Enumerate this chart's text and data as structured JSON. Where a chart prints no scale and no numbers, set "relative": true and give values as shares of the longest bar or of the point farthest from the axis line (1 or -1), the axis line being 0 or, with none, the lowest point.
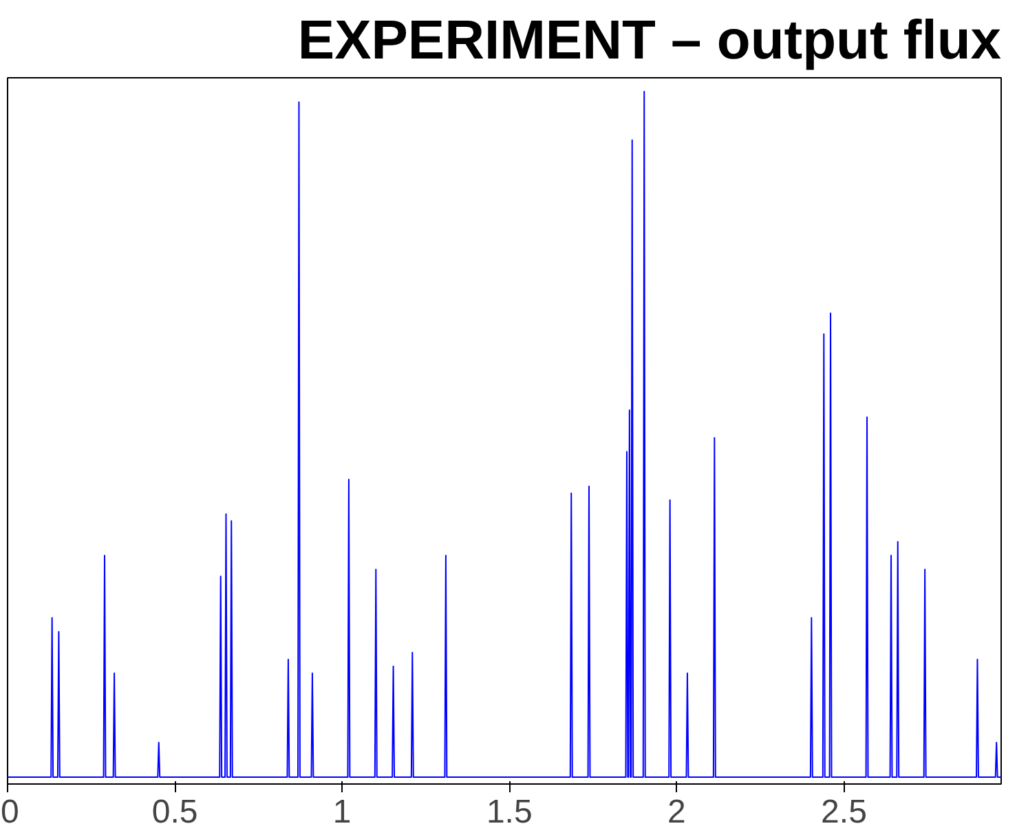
{
  "chart_data": {
    "type": "line",
    "title": "EXPERIMENT – output flux",
    "relative": true,
    "color": "#0000ff",
    "xlim": [
      0,
      2.97
    ],
    "xticks": [
      0,
      0.5,
      1,
      1.5,
      2,
      2.5
    ],
    "grid": false,
    "x": [
      0,
      0.13,
      0.133,
      0.136,
      0.15,
      0.153,
      0.156,
      0.287,
      0.29,
      0.293,
      0.316,
      0.319,
      0.322,
      0.449,
      0.452,
      0.455,
      0.634,
      0.637,
      0.64,
      0.65,
      0.653,
      0.656,
      0.666,
      0.669,
      0.672,
      0.836,
      0.839,
      0.842,
      0.868,
      0.871,
      0.874,
      0.908,
      0.911,
      0.914,
      1.017,
      1.02,
      1.023,
      1.098,
      1.101,
      1.104,
      1.15,
      1.153,
      1.156,
      1.207,
      1.21,
      1.213,
      1.307,
      1.31,
      1.313,
      1.682,
      1.685,
      1.688,
      1.735,
      1.738,
      1.741,
      1.848,
      1.851,
      1.854,
      1.856,
      1.859,
      1.862,
      1.864,
      1.867,
      1.87,
      1.9,
      1.903,
      1.906,
      1.977,
      1.98,
      1.983,
      2.029,
      2.032,
      2.035,
      2.11,
      2.113,
      2.116,
      2.4,
      2.403,
      2.406,
      2.437,
      2.44,
      2.443,
      2.457,
      2.46,
      2.463,
      2.566,
      2.569,
      2.572,
      2.638,
      2.641,
      2.644,
      2.658,
      2.661,
      2.664,
      2.739,
      2.742,
      2.745,
      2.896,
      2.899,
      2.902,
      2.953,
      2.956,
      2.959,
      2.97
    ],
    "values": [
      0.01,
      0.01,
      0.24,
      0.01,
      0.01,
      0.22,
      0.01,
      0.01,
      0.33,
      0.01,
      0.01,
      0.16,
      0.01,
      0.01,
      0.06,
      0.01,
      0.01,
      0.3,
      0.01,
      0.01,
      0.39,
      0.01,
      0.01,
      0.38,
      0.01,
      0.01,
      0.18,
      0.01,
      0.01,
      0.985,
      0.01,
      0.01,
      0.16,
      0.01,
      0.01,
      0.44,
      0.01,
      0.01,
      0.31,
      0.01,
      0.01,
      0.17,
      0.01,
      0.01,
      0.19,
      0.01,
      0.01,
      0.33,
      0.01,
      0.01,
      0.42,
      0.01,
      0.01,
      0.43,
      0.01,
      0.01,
      0.48,
      0.01,
      0.01,
      0.54,
      0.01,
      0.01,
      0.93,
      0.01,
      0.01,
      1.0,
      0.01,
      0.01,
      0.41,
      0.01,
      0.01,
      0.16,
      0.01,
      0.01,
      0.5,
      0.01,
      0.01,
      0.24,
      0.01,
      0.01,
      0.65,
      0.01,
      0.01,
      0.68,
      0.01,
      0.01,
      0.53,
      0.01,
      0.01,
      0.33,
      0.01,
      0.01,
      0.35,
      0.01,
      0.01,
      0.31,
      0.01,
      0.01,
      0.18,
      0.01,
      0.01,
      0.06,
      0.01,
      0.01
    ]
  }
}
